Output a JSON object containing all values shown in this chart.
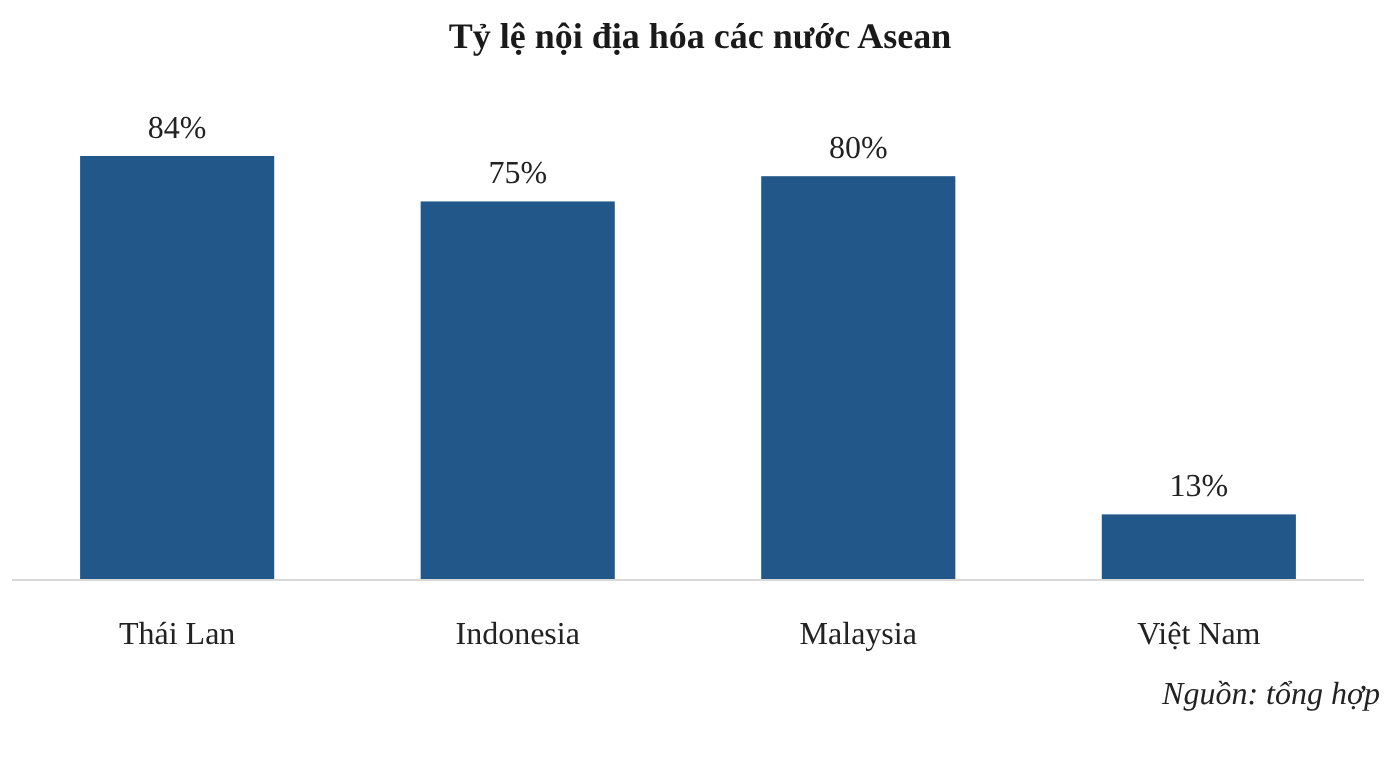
{
  "chart_data": {
    "type": "bar",
    "title": "Tỷ lệ nội địa hóa các nước Asean",
    "categories": [
      "Thái Lan",
      "Indonesia",
      "Malaysia",
      "Việt Nam"
    ],
    "values": [
      84,
      75,
      80,
      13
    ],
    "value_labels": [
      "84%",
      "75%",
      "80%",
      "13%"
    ],
    "color": "#22578a",
    "annotations": [
      "Nguồn: tổng hợp"
    ]
  }
}
